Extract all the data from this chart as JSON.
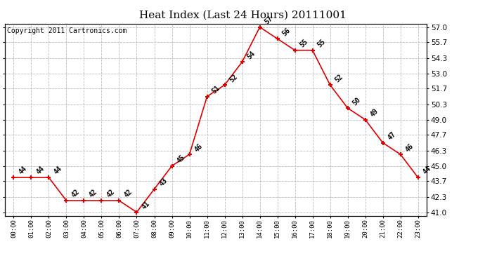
{
  "title": "Heat Index (Last 24 Hours) 20111001",
  "copyright": "Copyright 2011 Cartronics.com",
  "x_labels": [
    "00:00",
    "01:00",
    "02:00",
    "03:00",
    "04:00",
    "05:00",
    "06:00",
    "07:00",
    "08:00",
    "09:00",
    "10:00",
    "11:00",
    "12:00",
    "13:00",
    "14:00",
    "15:00",
    "16:00",
    "17:00",
    "18:00",
    "19:00",
    "20:00",
    "21:00",
    "22:00",
    "23:00"
  ],
  "y_values": [
    44,
    44,
    44,
    42,
    42,
    42,
    42,
    41,
    43,
    45,
    46,
    51,
    52,
    54,
    57,
    56,
    55,
    55,
    52,
    50,
    49,
    47,
    46,
    44
  ],
  "y_min": 41.0,
  "y_max": 57.0,
  "y_ticks": [
    41.0,
    42.3,
    43.7,
    45.0,
    46.3,
    47.7,
    49.0,
    50.3,
    51.7,
    53.0,
    54.3,
    55.7,
    57.0
  ],
  "line_color": "#dd0000",
  "marker_color": "#dd0000",
  "background_color": "#ffffff",
  "grid_color": "#bbbbbb",
  "title_fontsize": 11,
  "annotation_fontsize": 7,
  "copyright_fontsize": 7
}
